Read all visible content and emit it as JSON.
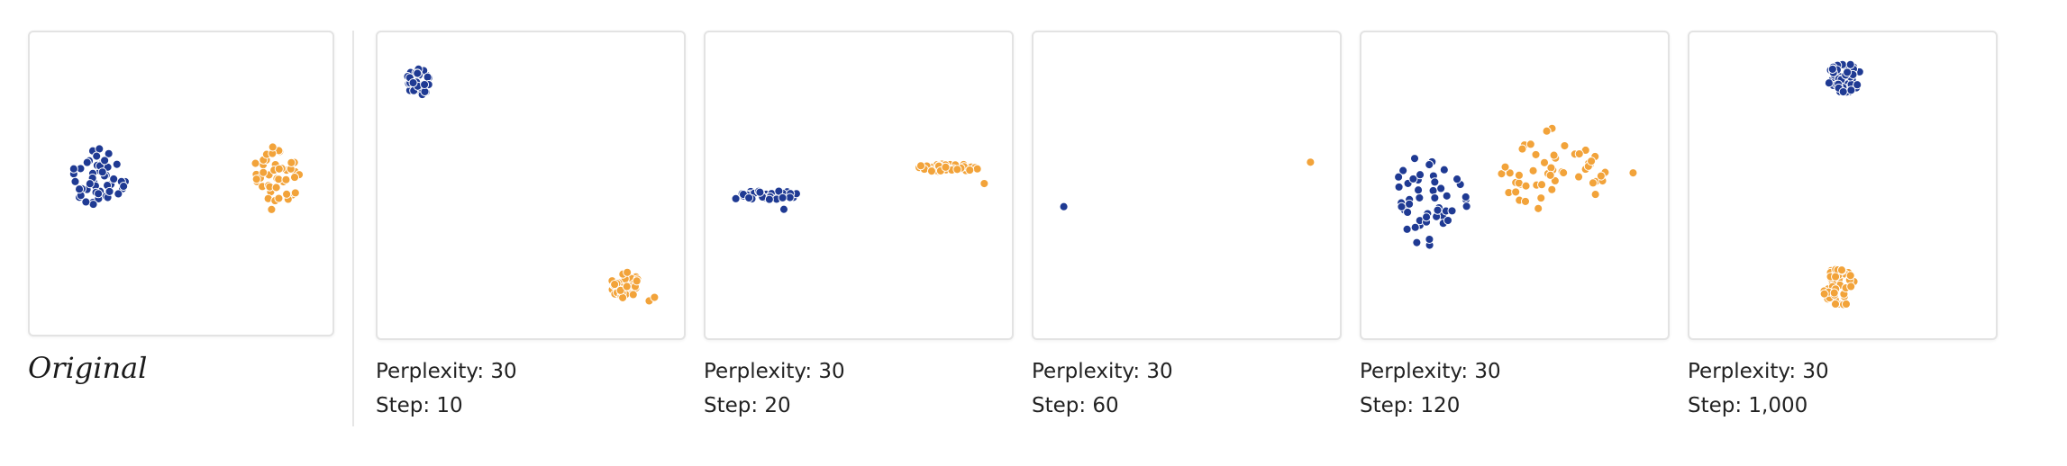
{
  "original": {
    "label": "Original"
  },
  "panels": [
    {
      "perplexity": "Perplexity: 30",
      "step": "Step: 10"
    },
    {
      "perplexity": "Perplexity: 30",
      "step": "Step: 20"
    },
    {
      "perplexity": "Perplexity: 30",
      "step": "Step: 60"
    },
    {
      "perplexity": "Perplexity: 30",
      "step": "Step: 120"
    },
    {
      "perplexity": "Perplexity: 30",
      "step": "Step: 1,000"
    }
  ],
  "colors": {
    "blue_cluster": "#1f3a93",
    "orange_cluster": "#f2a33a"
  }
}
